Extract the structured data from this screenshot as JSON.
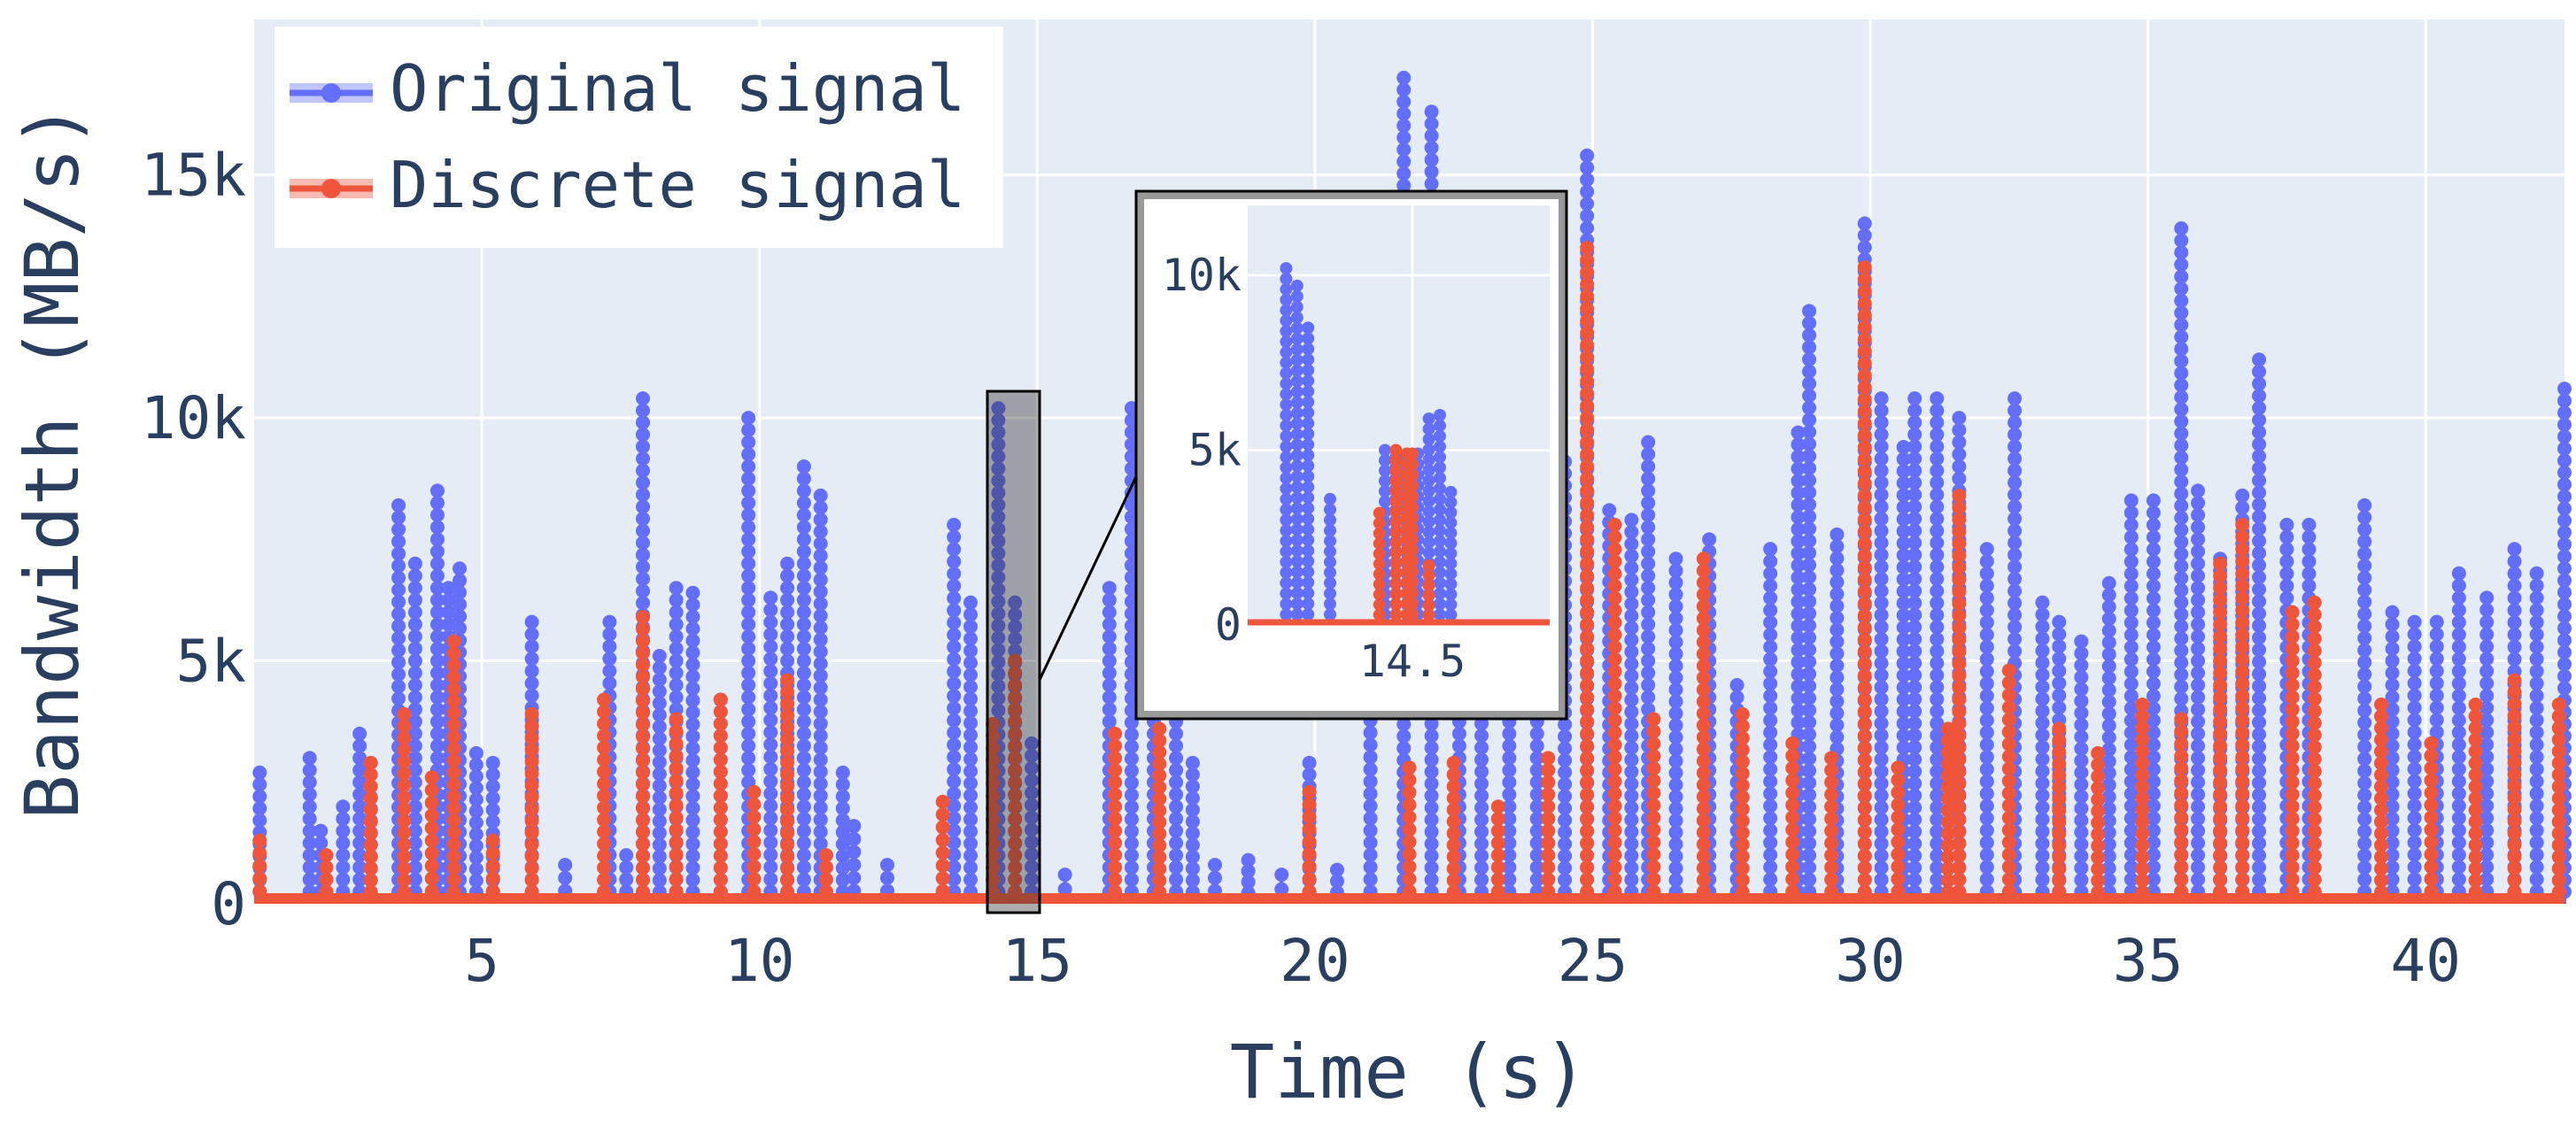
{
  "chart_data": [
    {
      "type": "line",
      "subtype": "stem-line-markers",
      "xlabel": "Time (s)",
      "ylabel": "Bandwidth (MB/s)",
      "xlim": [
        0.9,
        42.5
      ],
      "ylim": [
        0,
        18200
      ],
      "x_ticks": [
        5,
        10,
        15,
        20,
        25,
        30,
        35,
        40
      ],
      "x_tick_labels": [
        "5",
        "10",
        "15",
        "20",
        "25",
        "30",
        "35",
        "40"
      ],
      "y_ticks": [
        0,
        5000,
        10000,
        15000
      ],
      "y_tick_labels": [
        "0",
        "5k",
        "10k",
        "15k"
      ],
      "grid": true,
      "legend_position": "top-left",
      "colors": {
        "original": "#636efa",
        "discrete": "#ef553b",
        "plot_bg": "#e5ecf6"
      },
      "series": [
        {
          "name": "Original signal",
          "color": "#636efa",
          "points": [
            [
              1.0,
              2700
            ],
            [
              1.9,
              3000
            ],
            [
              2.1,
              1500
            ],
            [
              2.5,
              2000
            ],
            [
              2.8,
              3500
            ],
            [
              3.0,
              2200
            ],
            [
              3.5,
              8200
            ],
            [
              3.8,
              7000
            ],
            [
              4.2,
              8500
            ],
            [
              4.4,
              6500
            ],
            [
              4.6,
              6900
            ],
            [
              4.9,
              3100
            ],
            [
              5.2,
              2900
            ],
            [
              5.9,
              5800
            ],
            [
              6.5,
              800
            ],
            [
              7.3,
              5800
            ],
            [
              7.6,
              1000
            ],
            [
              7.9,
              10400
            ],
            [
              8.2,
              5100
            ],
            [
              8.5,
              6500
            ],
            [
              8.8,
              6400
            ],
            [
              9.3,
              4200
            ],
            [
              9.8,
              10000
            ],
            [
              10.2,
              6300
            ],
            [
              10.5,
              7000
            ],
            [
              10.8,
              9000
            ],
            [
              11.1,
              8400
            ],
            [
              11.5,
              2700
            ],
            [
              11.7,
              1600
            ],
            [
              12.3,
              800
            ],
            [
              13.5,
              7800
            ],
            [
              13.8,
              6200
            ],
            [
              14.3,
              10200
            ],
            [
              14.6,
              6200
            ],
            [
              14.9,
              3300
            ],
            [
              15.5,
              600
            ],
            [
              16.3,
              6500
            ],
            [
              16.7,
              10200
            ],
            [
              17.1,
              6000
            ],
            [
              17.5,
              4000
            ],
            [
              17.8,
              2900
            ],
            [
              18.2,
              800
            ],
            [
              18.8,
              900
            ],
            [
              19.4,
              600
            ],
            [
              19.9,
              2900
            ],
            [
              20.4,
              700
            ],
            [
              21.0,
              8300
            ],
            [
              21.6,
              17000
            ],
            [
              22.1,
              16300
            ],
            [
              22.6,
              11000
            ],
            [
              23.0,
              8900
            ],
            [
              23.5,
              10000
            ],
            [
              24.0,
              12500
            ],
            [
              24.5,
              9100
            ],
            [
              24.9,
              15400
            ],
            [
              25.3,
              8100
            ],
            [
              25.7,
              7900
            ],
            [
              26.0,
              9500
            ],
            [
              26.5,
              7100
            ],
            [
              27.1,
              7500
            ],
            [
              27.6,
              4500
            ],
            [
              28.2,
              7300
            ],
            [
              28.7,
              9700
            ],
            [
              28.9,
              12200
            ],
            [
              29.4,
              7600
            ],
            [
              29.9,
              14000
            ],
            [
              30.2,
              10400
            ],
            [
              30.6,
              9400
            ],
            [
              30.8,
              10400
            ],
            [
              31.2,
              10400
            ],
            [
              31.6,
              10000
            ],
            [
              32.1,
              7300
            ],
            [
              32.6,
              10400
            ],
            [
              33.1,
              6200
            ],
            [
              33.4,
              5800
            ],
            [
              33.8,
              5400
            ],
            [
              34.3,
              6600
            ],
            [
              34.7,
              8300
            ],
            [
              35.1,
              8300
            ],
            [
              35.6,
              13900
            ],
            [
              35.9,
              8500
            ],
            [
              36.3,
              7100
            ],
            [
              36.7,
              8400
            ],
            [
              37.0,
              11200
            ],
            [
              37.5,
              7800
            ],
            [
              37.9,
              7800
            ],
            [
              38.9,
              8200
            ],
            [
              39.4,
              6000
            ],
            [
              39.8,
              5800
            ],
            [
              40.2,
              5800
            ],
            [
              40.6,
              6800
            ],
            [
              41.1,
              6300
            ],
            [
              41.6,
              7300
            ],
            [
              42.0,
              6800
            ],
            [
              42.5,
              10600
            ]
          ]
        },
        {
          "name": "Discrete signal",
          "color": "#ef553b",
          "points": [
            [
              1.0,
              1300
            ],
            [
              2.2,
              1000
            ],
            [
              3.0,
              2900
            ],
            [
              3.6,
              3900
            ],
            [
              4.1,
              2600
            ],
            [
              4.5,
              5400
            ],
            [
              5.2,
              1300
            ],
            [
              5.9,
              3900
            ],
            [
              7.2,
              4200
            ],
            [
              7.9,
              5900
            ],
            [
              8.5,
              3800
            ],
            [
              9.3,
              4200
            ],
            [
              9.9,
              2300
            ],
            [
              10.5,
              4600
            ],
            [
              11.2,
              1000
            ],
            [
              13.3,
              2100
            ],
            [
              14.2,
              3700
            ],
            [
              14.6,
              5000
            ],
            [
              16.4,
              3500
            ],
            [
              17.2,
              3600
            ],
            [
              19.9,
              2300
            ],
            [
              21.7,
              2800
            ],
            [
              22.5,
              2900
            ],
            [
              23.3,
              2000
            ],
            [
              24.2,
              3000
            ],
            [
              24.9,
              13500
            ],
            [
              25.4,
              7800
            ],
            [
              26.1,
              3800
            ],
            [
              27.0,
              7100
            ],
            [
              27.7,
              3900
            ],
            [
              28.6,
              3300
            ],
            [
              29.3,
              3000
            ],
            [
              29.9,
              13100
            ],
            [
              30.5,
              2800
            ],
            [
              31.4,
              3600
            ],
            [
              31.6,
              8400
            ],
            [
              32.5,
              4800
            ],
            [
              33.4,
              3600
            ],
            [
              34.1,
              3100
            ],
            [
              34.9,
              4100
            ],
            [
              35.6,
              3800
            ],
            [
              36.3,
              7000
            ],
            [
              36.7,
              7800
            ],
            [
              37.6,
              6000
            ],
            [
              38.0,
              6200
            ],
            [
              39.2,
              4100
            ],
            [
              40.1,
              3300
            ],
            [
              40.9,
              4100
            ],
            [
              41.6,
              4600
            ],
            [
              42.4,
              4100
            ]
          ]
        }
      ]
    },
    {
      "type": "line",
      "subtype": "zoom-inset",
      "xlim": [
        14.2,
        14.75
      ],
      "ylim": [
        0,
        12000
      ],
      "x_ticks": [
        14.5
      ],
      "x_tick_labels": [
        "14.5"
      ],
      "y_ticks": [
        0,
        5000,
        10000
      ],
      "y_tick_labels": [
        "0",
        "5k",
        "10k"
      ],
      "series": [
        {
          "name": "Original signal",
          "color": "#636efa",
          "points": [
            [
              14.27,
              10200
            ],
            [
              14.29,
              9700
            ],
            [
              14.31,
              8500
            ],
            [
              14.35,
              3600
            ],
            [
              14.45,
              5000
            ],
            [
              14.47,
              4800
            ],
            [
              14.49,
              4700
            ],
            [
              14.51,
              4900
            ],
            [
              14.53,
              5900
            ],
            [
              14.55,
              6000
            ],
            [
              14.57,
              3800
            ]
          ]
        },
        {
          "name": "Discrete signal",
          "color": "#ef553b",
          "points": [
            [
              14.44,
              3200
            ],
            [
              14.47,
              5000
            ],
            [
              14.49,
              4900
            ],
            [
              14.5,
              4900
            ],
            [
              14.53,
              1700
            ]
          ]
        }
      ]
    }
  ]
}
